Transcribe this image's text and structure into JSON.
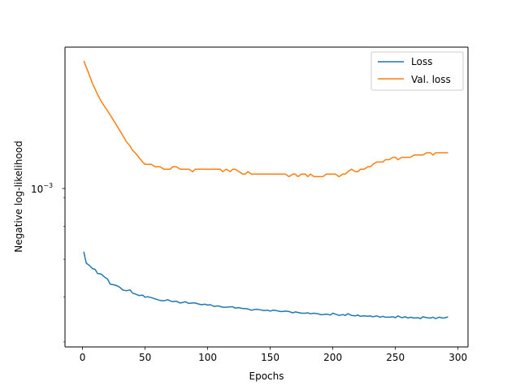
{
  "chart_data": {
    "type": "line",
    "title": "",
    "xlabel": "Epochs",
    "ylabel": "Negative log-likelihood",
    "xlim": [
      -14,
      308
    ],
    "ylim": [
      0.00049,
      0.00166
    ],
    "y_scale": "log",
    "x_ticks": [
      0,
      50,
      100,
      150,
      200,
      250,
      300
    ],
    "x_tick_labels": [
      "0",
      "50",
      "100",
      "150",
      "200",
      "250",
      "300"
    ],
    "y_ticks": [
      0.001
    ],
    "y_tick_labels": [
      "10",
      "−3"
    ],
    "grid": false,
    "legend_position": "top-right",
    "series": [
      {
        "name": "Loss",
        "color": "#1f77b4",
        "x": [
          1,
          3,
          5,
          8,
          10,
          12,
          15,
          18,
          20,
          22,
          25,
          28,
          30,
          32,
          35,
          38,
          40,
          42,
          45,
          48,
          50,
          52,
          55,
          58,
          60,
          62,
          65,
          68,
          70,
          72,
          75,
          78,
          80,
          82,
          85,
          88,
          90,
          92,
          95,
          98,
          100,
          102,
          105,
          108,
          110,
          112,
          115,
          118,
          120,
          122,
          125,
          128,
          130,
          132,
          135,
          138,
          140,
          142,
          145,
          148,
          150,
          152,
          155,
          158,
          160,
          162,
          165,
          168,
          170,
          172,
          175,
          178,
          180,
          182,
          185,
          188,
          190,
          192,
          195,
          198,
          200,
          202,
          205,
          208,
          210,
          212,
          215,
          218,
          220,
          222,
          225,
          228,
          230,
          232,
          235,
          238,
          240,
          242,
          245,
          248,
          250,
          252,
          255,
          258,
          260,
          262,
          265,
          268,
          270,
          272,
          275,
          278,
          280,
          282,
          285,
          288,
          290,
          292
        ],
        "values": [
          0.000722,
          0.000689,
          0.000684,
          0.000674,
          0.000672,
          0.000661,
          0.000659,
          0.00065,
          0.000646,
          0.000633,
          0.000631,
          0.000628,
          0.000624,
          0.000618,
          0.000616,
          0.000618,
          0.00061,
          0.000608,
          0.000604,
          0.000605,
          0.0006,
          0.000601,
          0.000599,
          0.000596,
          0.000594,
          0.000592,
          0.000591,
          0.000594,
          0.000591,
          0.000589,
          0.00059,
          0.000586,
          0.000587,
          0.000589,
          0.000585,
          0.000586,
          0.000586,
          0.000584,
          0.000582,
          0.000583,
          0.000581,
          0.000582,
          0.000578,
          0.000579,
          0.000578,
          0.000576,
          0.000576,
          0.000577,
          0.000577,
          0.000574,
          0.000575,
          0.000573,
          0.000573,
          0.000572,
          0.000569,
          0.000571,
          0.000571,
          0.00057,
          0.000568,
          0.000569,
          0.000567,
          0.000569,
          0.000568,
          0.000566,
          0.000566,
          0.000567,
          0.000566,
          0.000563,
          0.000565,
          0.000564,
          0.000562,
          0.000562,
          0.000563,
          0.000561,
          0.000562,
          0.000561,
          0.000559,
          0.000559,
          0.00056,
          0.000558,
          0.000562,
          0.00056,
          0.000557,
          0.000559,
          0.000557,
          0.000561,
          0.000557,
          0.000556,
          0.000558,
          0.000555,
          0.000556,
          0.000555,
          0.000556,
          0.000554,
          0.000556,
          0.000553,
          0.000555,
          0.000553,
          0.000553,
          0.000554,
          0.000552,
          0.000556,
          0.000552,
          0.000554,
          0.000551,
          0.000553,
          0.000551,
          0.000552,
          0.00055,
          0.000554,
          0.000552,
          0.000551,
          0.000553,
          0.00055,
          0.000553,
          0.000551,
          0.000552,
          0.000554
        ]
      },
      {
        "name": "Val. loss",
        "color": "#ff7f0e",
        "x": [
          1,
          3,
          5,
          8,
          10,
          12,
          15,
          18,
          20,
          22,
          25,
          28,
          30,
          32,
          35,
          38,
          40,
          42,
          45,
          48,
          50,
          52,
          55,
          58,
          60,
          62,
          65,
          68,
          70,
          72,
          75,
          78,
          80,
          82,
          85,
          88,
          90,
          92,
          95,
          98,
          100,
          102,
          105,
          108,
          110,
          112,
          115,
          118,
          120,
          122,
          125,
          128,
          130,
          132,
          135,
          138,
          140,
          142,
          145,
          148,
          150,
          152,
          155,
          158,
          160,
          162,
          165,
          168,
          170,
          172,
          175,
          178,
          180,
          182,
          185,
          188,
          190,
          192,
          195,
          198,
          200,
          202,
          205,
          208,
          210,
          212,
          215,
          218,
          220,
          222,
          225,
          228,
          230,
          232,
          235,
          238,
          240,
          242,
          245,
          248,
          250,
          252,
          255,
          258,
          260,
          262,
          265,
          268,
          270,
          272,
          275,
          278,
          280,
          282,
          285,
          288,
          290,
          292
        ],
        "values": [
          0.00157,
          0.00153,
          0.00149,
          0.00143,
          0.0014,
          0.00137,
          0.00133,
          0.0013,
          0.00128,
          0.00126,
          0.00123,
          0.0012,
          0.00118,
          0.00116,
          0.00113,
          0.00111,
          0.00109,
          0.00108,
          0.00106,
          0.00104,
          0.00103,
          0.00103,
          0.00103,
          0.00102,
          0.00102,
          0.00102,
          0.00101,
          0.00101,
          0.00101,
          0.00102,
          0.00102,
          0.00101,
          0.00101,
          0.00101,
          0.00101,
          0.001,
          0.00101,
          0.00101,
          0.00101,
          0.00101,
          0.00101,
          0.00101,
          0.00101,
          0.00101,
          0.00101,
          0.001,
          0.00101,
          0.001,
          0.00101,
          0.00101,
          0.001,
          0.00099,
          0.00099,
          0.001,
          0.00099,
          0.00099,
          0.00099,
          0.00099,
          0.00099,
          0.00099,
          0.00099,
          0.00099,
          0.00099,
          0.00099,
          0.00099,
          0.00099,
          0.00098,
          0.00099,
          0.00099,
          0.00098,
          0.00099,
          0.00099,
          0.00098,
          0.00099,
          0.00098,
          0.00098,
          0.00098,
          0.00098,
          0.00099,
          0.00099,
          0.00099,
          0.00099,
          0.00098,
          0.00099,
          0.00099,
          0.001,
          0.00101,
          0.001,
          0.001,
          0.00101,
          0.00101,
          0.00102,
          0.00102,
          0.00103,
          0.00104,
          0.00104,
          0.00104,
          0.00105,
          0.00105,
          0.00106,
          0.00106,
          0.00105,
          0.00106,
          0.00106,
          0.00106,
          0.00106,
          0.00107,
          0.00107,
          0.00107,
          0.00107,
          0.00108,
          0.00108,
          0.00107,
          0.00108,
          0.00108,
          0.00108,
          0.00108,
          0.00108
        ]
      }
    ]
  }
}
